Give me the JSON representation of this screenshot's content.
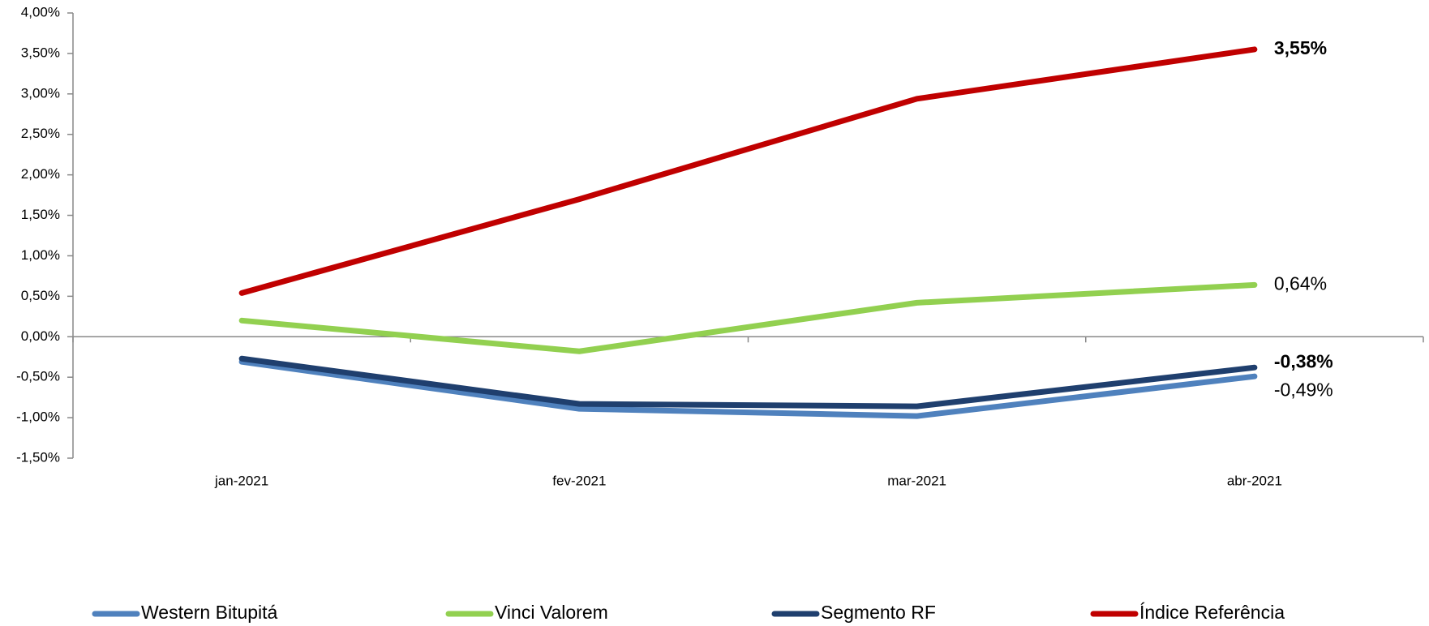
{
  "chart_data": {
    "type": "line",
    "categories": [
      "jan-2021",
      "fev-2021",
      "mar-2021",
      "abr-2021"
    ],
    "series": [
      {
        "name": "Western Bitupitá",
        "color": "#4f81bd",
        "values": [
          -0.31,
          -0.89,
          -0.98,
          -0.49
        ],
        "value_labels": [
          null,
          null,
          null,
          "-0,49%"
        ],
        "value_label_bold": false,
        "value_label_color": "#000000"
      },
      {
        "name": "Vinci Valorem",
        "color": "#92d050",
        "values": [
          0.2,
          -0.18,
          0.42,
          0.64
        ],
        "value_labels": [
          null,
          null,
          null,
          "0,64%"
        ],
        "value_label_bold": false,
        "value_label_color": "#000000"
      },
      {
        "name": "Segmento RF",
        "color": "#1f3f6e",
        "values": [
          -0.27,
          -0.83,
          -0.86,
          -0.38
        ],
        "value_labels": [
          null,
          null,
          null,
          "-0,38%"
        ],
        "value_label_bold": true,
        "value_label_color": "#1f4e79"
      },
      {
        "name": "Índice Referência",
        "color": "#c00000",
        "values": [
          0.54,
          1.7,
          2.94,
          3.55
        ],
        "value_labels": [
          null,
          null,
          null,
          "3,55%"
        ],
        "value_label_bold": true,
        "value_label_color": "#000000"
      }
    ],
    "ylim": [
      -1.5,
      4.0
    ],
    "yticks": [
      {
        "value": -1.5,
        "label": "-1,50%"
      },
      {
        "value": -1.0,
        "label": "-1,00%"
      },
      {
        "value": -0.5,
        "label": "-0,50%"
      },
      {
        "value": 0,
        "label": "0,00%"
      },
      {
        "value": 0.5,
        "label": "0,50%"
      },
      {
        "value": 1.0,
        "label": "1,00%"
      },
      {
        "value": 1.5,
        "label": "1,50%"
      },
      {
        "value": 2.0,
        "label": "2,00%"
      },
      {
        "value": 2.5,
        "label": "2,50%"
      },
      {
        "value": 3.0,
        "label": "3,00%"
      },
      {
        "value": 3.5,
        "label": "3,50%"
      },
      {
        "value": 4.0,
        "label": "4,00%"
      }
    ],
    "legend": "bottom"
  }
}
